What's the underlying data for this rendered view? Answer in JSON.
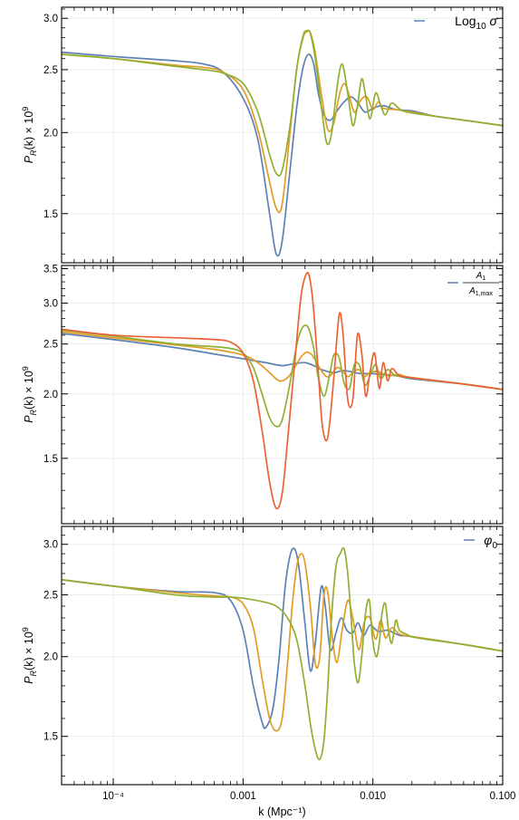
{
  "chart_data": [
    {
      "type": "line",
      "panel": "top",
      "ylabel": "P_R(k) × 10^9",
      "ylim": [
        1.26,
        3.12
      ],
      "yscale": "log",
      "yticks": [
        {
          "v": 1.5,
          "label": "1.5"
        },
        {
          "v": 2.0,
          "label": "2.0"
        },
        {
          "v": 2.5,
          "label": "2.5"
        },
        {
          "v": 3.0,
          "label": "3.0"
        }
      ],
      "legend": {
        "label": "Log10 σ",
        "parts": [
          "Log",
          "10",
          " σ"
        ],
        "position": "top-right"
      },
      "series": [
        {
          "color": "#5e81b5",
          "x": [
            4e-05,
            0.0001,
            0.0003,
            0.0005,
            0.0007,
            0.001,
            0.0013,
            0.0016,
            0.0018,
            0.002,
            0.0023,
            0.0026,
            0.0029,
            0.0032,
            0.0035,
            0.0038,
            0.0042,
            0.0047,
            0.0053,
            0.006,
            0.0068,
            0.0077,
            0.0087,
            0.01,
            0.012,
            0.015,
            0.02,
            0.03,
            0.05,
            0.1
          ],
          "y": [
            2.66,
            2.62,
            2.58,
            2.55,
            2.48,
            2.26,
            1.95,
            1.5,
            1.3,
            1.36,
            1.75,
            2.2,
            2.52,
            2.64,
            2.55,
            2.3,
            2.13,
            2.09,
            2.16,
            2.23,
            2.27,
            2.22,
            2.15,
            2.18,
            2.2,
            2.17,
            2.16,
            2.12,
            2.09,
            2.05
          ]
        },
        {
          "color": "#e19c24",
          "x": [
            4e-05,
            0.0001,
            0.0003,
            0.0005,
            0.0007,
            0.001,
            0.0013,
            0.0016,
            0.0018,
            0.002,
            0.0023,
            0.0026,
            0.0029,
            0.0031,
            0.0033,
            0.0036,
            0.004,
            0.0045,
            0.005,
            0.0055,
            0.006,
            0.0065,
            0.0072,
            0.008,
            0.009,
            0.01,
            0.011,
            0.012,
            0.015,
            0.02,
            0.03,
            0.05,
            0.1
          ],
          "y": [
            2.64,
            2.6,
            2.54,
            2.52,
            2.48,
            2.33,
            2.02,
            1.68,
            1.53,
            1.55,
            2.0,
            2.52,
            2.8,
            2.86,
            2.85,
            2.65,
            2.3,
            2.02,
            2.07,
            2.28,
            2.38,
            2.3,
            2.15,
            2.24,
            2.27,
            2.17,
            2.23,
            2.18,
            2.17,
            2.15,
            2.12,
            2.09,
            2.05
          ]
        },
        {
          "color": "#8fb032",
          "x": [
            4e-05,
            0.0001,
            0.0003,
            0.0005,
            0.0007,
            0.001,
            0.0013,
            0.0016,
            0.0018,
            0.002,
            0.0023,
            0.0026,
            0.0029,
            0.0031,
            0.0033,
            0.0036,
            0.004,
            0.0044,
            0.0048,
            0.0053,
            0.0058,
            0.0064,
            0.007,
            0.0076,
            0.0082,
            0.0088,
            0.0095,
            0.0105,
            0.0115,
            0.0125,
            0.014,
            0.017,
            0.025,
            0.05,
            0.1
          ],
          "y": [
            2.64,
            2.6,
            2.53,
            2.5,
            2.47,
            2.38,
            2.15,
            1.85,
            1.73,
            1.75,
            2.05,
            2.52,
            2.82,
            2.87,
            2.84,
            2.6,
            2.2,
            1.93,
            1.99,
            2.35,
            2.55,
            2.3,
            2.05,
            2.2,
            2.42,
            2.28,
            2.1,
            2.3,
            2.2,
            2.13,
            2.22,
            2.16,
            2.13,
            2.09,
            2.05
          ]
        }
      ]
    },
    {
      "type": "line",
      "panel": "middle",
      "ylabel": "P_R(k) × 10^9",
      "ylim": [
        1.12,
        3.55
      ],
      "yscale": "log",
      "yticks": [
        {
          "v": 1.5,
          "label": "1.5"
        },
        {
          "v": 2.0,
          "label": "2.0"
        },
        {
          "v": 2.5,
          "label": "2.5"
        },
        {
          "v": 3.0,
          "label": "3.0"
        },
        {
          "v": 3.5,
          "label": "3.5"
        }
      ],
      "legend": {
        "label": "A1 / A1,max",
        "numerator": "A",
        "numerator_sub": "1",
        "denominator": "A",
        "denominator_sub": "1,max",
        "position": "top-right"
      },
      "series": [
        {
          "color": "#5e81b5",
          "x": [
            4e-05,
            0.0001,
            0.0003,
            0.0006,
            0.001,
            0.0015,
            0.002,
            0.0025,
            0.003,
            0.0035,
            0.004,
            0.005,
            0.006,
            0.008,
            0.01,
            0.015,
            0.02,
            0.05,
            0.1
          ],
          "y": [
            2.62,
            2.55,
            2.46,
            2.39,
            2.34,
            2.3,
            2.27,
            2.29,
            2.3,
            2.27,
            2.23,
            2.2,
            2.22,
            2.19,
            2.19,
            2.17,
            2.14,
            2.09,
            2.04
          ]
        },
        {
          "color": "#e19c24",
          "x": [
            4e-05,
            0.0001,
            0.0003,
            0.0006,
            0.001,
            0.0013,
            0.0016,
            0.0019,
            0.0022,
            0.0025,
            0.0028,
            0.0031,
            0.0034,
            0.0037,
            0.004,
            0.0044,
            0.0048,
            0.0053,
            0.0058,
            0.0064,
            0.007,
            0.0078,
            0.0086,
            0.0095,
            0.011,
            0.013,
            0.016,
            0.02,
            0.05,
            0.1
          ],
          "y": [
            2.64,
            2.57,
            2.49,
            2.44,
            2.38,
            2.3,
            2.2,
            2.12,
            2.15,
            2.25,
            2.36,
            2.41,
            2.38,
            2.3,
            2.22,
            2.16,
            2.18,
            2.25,
            2.22,
            2.16,
            2.2,
            2.23,
            2.16,
            2.2,
            2.21,
            2.17,
            2.18,
            2.15,
            2.09,
            2.04
          ]
        },
        {
          "color": "#8fb032",
          "x": [
            4e-05,
            0.0001,
            0.0003,
            0.0006,
            0.0008,
            0.001,
            0.0012,
            0.0014,
            0.0016,
            0.0018,
            0.002,
            0.0023,
            0.0026,
            0.0029,
            0.0032,
            0.0035,
            0.0038,
            0.0042,
            0.0046,
            0.005,
            0.0055,
            0.006,
            0.0066,
            0.0072,
            0.0079,
            0.0087,
            0.0095,
            0.0105,
            0.0115,
            0.013,
            0.015,
            0.02,
            0.05,
            0.1
          ],
          "y": [
            2.66,
            2.59,
            2.5,
            2.47,
            2.45,
            2.4,
            2.25,
            2.0,
            1.8,
            1.73,
            1.78,
            2.1,
            2.5,
            2.7,
            2.68,
            2.45,
            2.15,
            1.98,
            2.15,
            2.38,
            2.35,
            2.1,
            2.05,
            2.28,
            2.27,
            2.08,
            2.17,
            2.28,
            2.14,
            2.23,
            2.17,
            2.15,
            2.09,
            2.04
          ]
        },
        {
          "color": "#eb6235",
          "x": [
            4e-05,
            0.0001,
            0.0003,
            0.0006,
            0.0008,
            0.001,
            0.0012,
            0.0014,
            0.0016,
            0.0018,
            0.002,
            0.0022,
            0.0025,
            0.0028,
            0.0031,
            0.0033,
            0.0035,
            0.0038,
            0.0041,
            0.0045,
            0.005,
            0.0055,
            0.0059,
            0.0064,
            0.007,
            0.0076,
            0.0082,
            0.0088,
            0.0095,
            0.0103,
            0.0112,
            0.012,
            0.013,
            0.014,
            0.016,
            0.02,
            0.05,
            0.1
          ],
          "y": [
            2.67,
            2.6,
            2.57,
            2.55,
            2.52,
            2.4,
            2.12,
            1.7,
            1.35,
            1.2,
            1.28,
            1.62,
            2.3,
            3.1,
            3.43,
            3.3,
            2.9,
            2.2,
            1.72,
            1.65,
            2.15,
            2.85,
            2.6,
            1.95,
            1.95,
            2.6,
            2.4,
            1.98,
            2.2,
            2.4,
            2.05,
            2.3,
            2.12,
            2.24,
            2.17,
            2.15,
            2.09,
            2.04
          ]
        }
      ]
    },
    {
      "type": "line",
      "panel": "bottom",
      "ylabel": "P_R(k) × 10^9",
      "xlabel": "k (Mpc⁻¹)",
      "ylim": [
        1.26,
        3.2
      ],
      "yscale": "log",
      "xlim": [
        4e-05,
        0.1
      ],
      "xscale": "log",
      "yticks": [
        {
          "v": 1.5,
          "label": "1.5"
        },
        {
          "v": 2.0,
          "label": "2.0"
        },
        {
          "v": 2.5,
          "label": "2.5"
        },
        {
          "v": 3.0,
          "label": "3.0"
        }
      ],
      "xticks": [
        {
          "v": 0.0001,
          "label": "10⁻⁴"
        },
        {
          "v": 0.001,
          "label": "0.001"
        },
        {
          "v": 0.01,
          "label": "0.010"
        },
        {
          "v": 0.1,
          "label": "0.100"
        }
      ],
      "legend": {
        "label": "φ0",
        "parts": [
          "φ",
          "0"
        ],
        "position": "top-right"
      },
      "series": [
        {
          "color": "#5e81b5",
          "x": [
            4e-05,
            0.0001,
            0.0003,
            0.0006,
            0.0008,
            0.001,
            0.0012,
            0.0014,
            0.0015,
            0.0017,
            0.0019,
            0.0021,
            0.0023,
            0.0025,
            0.0027,
            0.003,
            0.0033,
            0.0036,
            0.004,
            0.0043,
            0.0047,
            0.0052,
            0.0057,
            0.0063,
            0.007,
            0.0077,
            0.0085,
            0.0095,
            0.011,
            0.013,
            0.016,
            0.02,
            0.05,
            0.1
          ],
          "y": [
            2.64,
            2.58,
            2.53,
            2.52,
            2.45,
            2.2,
            1.8,
            1.58,
            1.55,
            1.66,
            2.0,
            2.55,
            2.88,
            2.95,
            2.75,
            2.25,
            1.9,
            2.1,
            2.57,
            2.4,
            2.05,
            2.18,
            2.3,
            2.2,
            2.18,
            2.26,
            2.16,
            2.24,
            2.19,
            2.2,
            2.16,
            2.15,
            2.09,
            2.04
          ]
        },
        {
          "color": "#e19c24",
          "x": [
            4e-05,
            0.0001,
            0.0003,
            0.0006,
            0.0008,
            0.001,
            0.0012,
            0.0014,
            0.0016,
            0.0018,
            0.002,
            0.0022,
            0.0024,
            0.0026,
            0.0028,
            0.003,
            0.0033,
            0.0036,
            0.0039,
            0.0042,
            0.0045,
            0.0049,
            0.0053,
            0.0058,
            0.0064,
            0.007,
            0.0078,
            0.0086,
            0.0095,
            0.0105,
            0.0115,
            0.0125,
            0.014,
            0.016,
            0.02,
            0.05,
            0.1
          ],
          "y": [
            2.64,
            2.58,
            2.52,
            2.49,
            2.48,
            2.42,
            2.22,
            1.85,
            1.6,
            1.53,
            1.6,
            1.95,
            2.42,
            2.78,
            2.9,
            2.8,
            2.4,
            1.95,
            2.0,
            2.5,
            2.52,
            2.12,
            1.96,
            2.2,
            2.45,
            2.3,
            2.05,
            2.27,
            2.3,
            2.13,
            2.28,
            2.14,
            2.22,
            2.17,
            2.15,
            2.09,
            2.04
          ]
        },
        {
          "color": "#8fb032",
          "x": [
            4e-05,
            0.0001,
            0.0003,
            0.0006,
            0.0008,
            0.001,
            0.0014,
            0.0018,
            0.0022,
            0.0026,
            0.003,
            0.0033,
            0.0036,
            0.0039,
            0.0042,
            0.0045,
            0.0048,
            0.0052,
            0.0056,
            0.006,
            0.0064,
            0.0068,
            0.0072,
            0.0077,
            0.0082,
            0.0088,
            0.0094,
            0.0099,
            0.0106,
            0.0112,
            0.0118,
            0.0125,
            0.0132,
            0.014,
            0.015,
            0.016,
            0.018,
            0.022,
            0.05,
            0.1
          ],
          "y": [
            2.64,
            2.58,
            2.5,
            2.48,
            2.48,
            2.47,
            2.44,
            2.4,
            2.3,
            2.12,
            1.8,
            1.57,
            1.43,
            1.38,
            1.48,
            1.8,
            2.3,
            2.77,
            2.9,
            2.95,
            2.7,
            2.3,
            1.95,
            1.82,
            2.0,
            2.35,
            2.45,
            2.15,
            2.0,
            2.1,
            2.35,
            2.42,
            2.2,
            2.1,
            2.28,
            2.2,
            2.17,
            2.14,
            2.09,
            2.04
          ]
        }
      ]
    }
  ]
}
